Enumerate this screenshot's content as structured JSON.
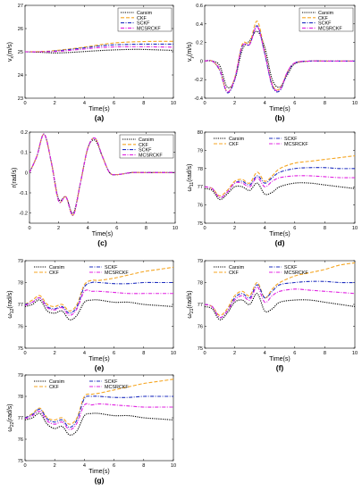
{
  "chart_data": [
    {
      "panel": "a",
      "caption": "(a)",
      "type": "line",
      "xlabel": "Time(s)",
      "ylabel": "vx(m/s)",
      "ylabel_main": "v",
      "ylabel_sub": "x",
      "ylabel_unit": "(m/s)",
      "xlim": [
        0,
        10
      ],
      "ylim": [
        23,
        27
      ],
      "xticks": [
        "0",
        "2",
        "4",
        "6",
        "8",
        "10"
      ],
      "yticks": [
        "23",
        "24",
        "25",
        "26",
        "27"
      ],
      "legend": "top-right",
      "x": [
        0,
        1,
        2,
        3,
        4,
        5,
        6,
        7,
        8,
        9,
        10
      ],
      "series": [
        {
          "name": "Carsim",
          "values": [
            25.0,
            24.98,
            24.95,
            24.97,
            25.01,
            25.05,
            25.08,
            25.1,
            25.1,
            25.08,
            25.06
          ]
        },
        {
          "name": "CKF",
          "values": [
            25.0,
            25.01,
            25.05,
            25.12,
            25.2,
            25.3,
            25.38,
            25.42,
            25.44,
            25.45,
            25.45
          ]
        },
        {
          "name": "SCKF",
          "values": [
            25.0,
            25.0,
            25.03,
            25.1,
            25.17,
            25.25,
            25.3,
            25.32,
            25.33,
            25.33,
            25.33
          ]
        },
        {
          "name": "MCSRCKF",
          "values": [
            25.0,
            25.0,
            25.01,
            25.06,
            25.12,
            25.18,
            25.21,
            25.22,
            25.22,
            25.21,
            25.2
          ]
        }
      ]
    },
    {
      "panel": "b",
      "caption": "(b)",
      "type": "line",
      "xlabel": "Time(s)",
      "ylabel": "vy(m/s)",
      "ylabel_main": "v",
      "ylabel_sub": "y",
      "ylabel_unit": "(m/s)",
      "xlim": [
        0,
        10
      ],
      "ylim": [
        -0.4,
        0.6
      ],
      "xticks": [
        "0",
        "2",
        "4",
        "6",
        "8",
        "10"
      ],
      "yticks": [
        "-0.4",
        "-0.2",
        "0",
        "0.2",
        "0.4",
        "0.6"
      ],
      "legend": "top-right",
      "x": [
        0,
        0.5,
        1,
        1.5,
        2,
        2.5,
        3,
        3.5,
        4,
        4.5,
        5,
        5.5,
        6,
        7,
        8,
        10
      ],
      "series": [
        {
          "name": "Carsim",
          "values": [
            0,
            0,
            -0.05,
            -0.28,
            -0.2,
            0.12,
            0.22,
            0.32,
            0.15,
            -0.2,
            -0.28,
            -0.15,
            -0.03,
            0,
            0,
            0
          ]
        },
        {
          "name": "CKF",
          "values": [
            0,
            0,
            -0.1,
            -0.33,
            -0.18,
            0.18,
            0.2,
            0.43,
            0.1,
            -0.25,
            -0.3,
            -0.12,
            -0.02,
            0,
            0,
            0
          ]
        },
        {
          "name": "SCKF",
          "values": [
            0,
            0,
            -0.1,
            -0.34,
            -0.2,
            0.16,
            0.18,
            0.38,
            0.08,
            -0.27,
            -0.32,
            -0.13,
            -0.02,
            0,
            0,
            0
          ]
        },
        {
          "name": "MCSRCKF",
          "values": [
            0,
            0,
            -0.09,
            -0.33,
            -0.19,
            0.16,
            0.18,
            0.37,
            0.08,
            -0.26,
            -0.31,
            -0.12,
            -0.02,
            0,
            0,
            0
          ]
        }
      ]
    },
    {
      "panel": "c",
      "caption": "(c)",
      "type": "line",
      "xlabel": "Time(s)",
      "ylabel": "r(rad/s)",
      "ylabel_main": "r(rad/s)",
      "ylabel_sub": "",
      "ylabel_unit": "",
      "xlim": [
        0,
        10
      ],
      "ylim": [
        -0.25,
        0.2
      ],
      "xticks": [
        "0",
        "2",
        "4",
        "6",
        "8",
        "10"
      ],
      "yticks": [
        "-0.2",
        "-0.1",
        "0",
        "0.1",
        "0.2"
      ],
      "legend": "top-right",
      "x": [
        0,
        0.5,
        1,
        1.5,
        2,
        2.5,
        3,
        3.5,
        4,
        4.5,
        5,
        5.5,
        6,
        7,
        8,
        10
      ],
      "series": [
        {
          "name": "Carsim",
          "values": [
            0,
            0.08,
            0.19,
            0.05,
            -0.13,
            -0.12,
            -0.2,
            -0.05,
            0.12,
            0.16,
            0.08,
            0.0,
            -0.01,
            0,
            0,
            0
          ]
        },
        {
          "name": "CKF",
          "values": [
            0,
            0.08,
            0.19,
            0.05,
            -0.14,
            -0.12,
            -0.21,
            -0.05,
            0.12,
            0.17,
            0.08,
            0.0,
            -0.01,
            0,
            0,
            0
          ]
        },
        {
          "name": "SCKF",
          "values": [
            0,
            0.08,
            0.19,
            0.05,
            -0.14,
            -0.12,
            -0.21,
            -0.05,
            0.12,
            0.17,
            0.08,
            0.0,
            -0.01,
            0,
            0,
            0
          ]
        },
        {
          "name": "MCSRCKF",
          "values": [
            0,
            0.08,
            0.19,
            0.05,
            -0.14,
            -0.12,
            -0.21,
            -0.05,
            0.12,
            0.17,
            0.08,
            0.0,
            -0.01,
            0,
            0,
            0
          ]
        }
      ]
    },
    {
      "panel": "d",
      "caption": "(d)",
      "type": "line",
      "xlabel": "Time(s)",
      "ylabel": "ω11(rad/s)",
      "ylabel_main": "ω",
      "ylabel_sub": "11",
      "ylabel_unit": "(rad/s)",
      "xlim": [
        0,
        10
      ],
      "ylim": [
        75,
        80
      ],
      "xticks": [
        "0",
        "2",
        "4",
        "6",
        "8",
        "10"
      ],
      "yticks": [
        "75",
        "76",
        "77",
        "78",
        "79",
        "80"
      ],
      "legend": "top-two-columns",
      "x": [
        0,
        0.5,
        1,
        1.5,
        2,
        2.5,
        3,
        3.5,
        4,
        4.5,
        5,
        6,
        7,
        8,
        9,
        10
      ],
      "series": [
        {
          "name": "Carsim",
          "values": [
            76.9,
            76.8,
            76.3,
            76.6,
            77.0,
            77.0,
            76.8,
            77.2,
            76.6,
            76.7,
            77.0,
            77.2,
            77.2,
            77.1,
            77.0,
            76.9
          ]
        },
        {
          "name": "CKF",
          "values": [
            77.0,
            76.9,
            76.5,
            76.8,
            77.3,
            77.4,
            77.2,
            77.8,
            77.3,
            77.6,
            78.0,
            78.3,
            78.4,
            78.5,
            78.6,
            78.7
          ]
        },
        {
          "name": "SCKF",
          "values": [
            77.0,
            76.9,
            76.4,
            76.7,
            77.2,
            77.3,
            77.1,
            77.6,
            77.2,
            77.5,
            77.8,
            78.0,
            78.05,
            78.05,
            78.0,
            78.0
          ]
        },
        {
          "name": "MCSRCKF",
          "values": [
            77.0,
            76.9,
            76.4,
            76.7,
            77.2,
            77.2,
            77.0,
            77.5,
            77.0,
            77.3,
            77.5,
            77.6,
            77.6,
            77.55,
            77.5,
            77.5
          ]
        }
      ]
    },
    {
      "panel": "e",
      "caption": "(e)",
      "type": "line",
      "xlabel": "Time(s)",
      "ylabel": "ω12(rad/s)",
      "ylabel_main": "ω",
      "ylabel_sub": "12",
      "ylabel_unit": "(rad/s)",
      "xlim": [
        0,
        10
      ],
      "ylim": [
        75,
        79
      ],
      "xticks": [
        "0",
        "2",
        "4",
        "6",
        "8",
        "10"
      ],
      "yticks": [
        "75",
        "76",
        "77",
        "78",
        "79"
      ],
      "legend": "top-two-columns",
      "x": [
        0,
        0.5,
        1,
        1.5,
        2,
        2.5,
        3,
        3.5,
        4,
        4.5,
        5,
        6,
        7,
        8,
        9,
        10
      ],
      "series": [
        {
          "name": "Carsim",
          "values": [
            76.9,
            77.0,
            77.2,
            76.7,
            76.6,
            76.7,
            76.3,
            76.5,
            77.1,
            77.2,
            77.2,
            77.1,
            77.1,
            77.0,
            76.95,
            76.9
          ]
        },
        {
          "name": "CKF",
          "values": [
            77.0,
            77.2,
            77.4,
            77.0,
            76.9,
            77.0,
            76.7,
            77.0,
            77.9,
            78.1,
            78.1,
            78.2,
            78.35,
            78.5,
            78.6,
            78.7
          ]
        },
        {
          "name": "SCKF",
          "values": [
            77.0,
            77.1,
            77.3,
            76.9,
            76.8,
            76.9,
            76.6,
            76.9,
            77.8,
            78.0,
            78.0,
            77.95,
            77.95,
            78.0,
            78.0,
            78.0
          ]
        },
        {
          "name": "MCSRCKF",
          "values": [
            76.95,
            77.1,
            77.3,
            76.85,
            76.75,
            76.85,
            76.5,
            76.8,
            77.6,
            77.6,
            77.6,
            77.55,
            77.5,
            77.5,
            77.5,
            77.5
          ]
        }
      ]
    },
    {
      "panel": "f",
      "caption": "(f)",
      "type": "line",
      "xlabel": "Time(s)",
      "ylabel": "ω21(rad/s)",
      "ylabel_main": "ω",
      "ylabel_sub": "21",
      "ylabel_unit": "(rad/s)",
      "xlim": [
        0,
        10
      ],
      "ylim": [
        75,
        79
      ],
      "xticks": [
        "0",
        "2",
        "4",
        "6",
        "8",
        "10"
      ],
      "yticks": [
        "75",
        "76",
        "77",
        "78",
        "79"
      ],
      "legend": "top-two-columns",
      "x": [
        0,
        0.5,
        1,
        1.5,
        2,
        2.5,
        3,
        3.5,
        4,
        4.5,
        5,
        6,
        7,
        8,
        9,
        10
      ],
      "series": [
        {
          "name": "Carsim",
          "values": [
            76.9,
            76.8,
            76.3,
            76.6,
            77.1,
            77.2,
            77.0,
            77.5,
            76.7,
            76.8,
            77.1,
            77.2,
            77.2,
            77.1,
            77.0,
            76.9
          ]
        },
        {
          "name": "CKF",
          "values": [
            77.0,
            76.9,
            76.5,
            76.8,
            77.4,
            77.6,
            77.4,
            78.0,
            77.3,
            77.7,
            78.0,
            78.3,
            78.45,
            78.6,
            78.8,
            78.9
          ]
        },
        {
          "name": "SCKF",
          "values": [
            77.0,
            76.9,
            76.4,
            76.7,
            77.3,
            77.5,
            77.3,
            77.9,
            77.3,
            77.6,
            77.9,
            78.0,
            78.05,
            78.05,
            78.0,
            78.0
          ]
        },
        {
          "name": "MCSRCKF",
          "values": [
            77.0,
            76.9,
            76.4,
            76.7,
            77.2,
            77.4,
            77.2,
            77.8,
            77.1,
            77.4,
            77.6,
            77.7,
            77.65,
            77.6,
            77.55,
            77.5
          ]
        }
      ]
    },
    {
      "panel": "g",
      "caption": "(g)",
      "type": "line",
      "xlabel": "Time(s)",
      "ylabel": "ω22(rad/s)",
      "ylabel_main": "ω",
      "ylabel_sub": "22",
      "ylabel_unit": "(rad/s)",
      "xlim": [
        0,
        10
      ],
      "ylim": [
        75,
        79
      ],
      "xticks": [
        "0",
        "2",
        "4",
        "6",
        "8",
        "10"
      ],
      "yticks": [
        "75",
        "76",
        "77",
        "78",
        "79"
      ],
      "legend": "top-two-columns",
      "x": [
        0,
        0.5,
        1,
        1.5,
        2,
        2.5,
        3,
        3.5,
        4,
        4.5,
        5,
        6,
        7,
        8,
        9,
        10
      ],
      "series": [
        {
          "name": "Carsim",
          "values": [
            76.9,
            77.0,
            77.2,
            76.7,
            76.5,
            76.6,
            76.2,
            76.4,
            77.1,
            77.2,
            77.2,
            77.1,
            77.1,
            77.0,
            76.95,
            76.9
          ]
        },
        {
          "name": "CKF",
          "values": [
            77.0,
            77.2,
            77.45,
            77.0,
            76.9,
            77.0,
            76.7,
            77.0,
            78.0,
            78.1,
            78.15,
            78.3,
            78.45,
            78.6,
            78.7,
            78.8
          ]
        },
        {
          "name": "SCKF",
          "values": [
            77.0,
            77.15,
            77.4,
            76.95,
            76.8,
            76.9,
            76.55,
            76.9,
            77.9,
            78.0,
            78.0,
            77.95,
            77.95,
            78.0,
            78.0,
            78.0
          ]
        },
        {
          "name": "MCSRCKF",
          "values": [
            76.95,
            77.1,
            77.3,
            76.85,
            76.7,
            76.8,
            76.45,
            76.75,
            77.6,
            77.6,
            77.65,
            77.6,
            77.55,
            77.5,
            77.5,
            77.5
          ]
        }
      ]
    }
  ],
  "styles": {
    "Carsim": {
      "color": "#000000",
      "dash": "1.2 1.2"
    },
    "CKF": {
      "color": "#f5a623",
      "dash": "4 2"
    },
    "SCKF": {
      "color": "#1f2fbf",
      "dash": "4 1.5 1 1.5"
    },
    "MCSRCKF": {
      "color": "#e020e0",
      "dash": "4 1.5 1 1.5"
    }
  }
}
